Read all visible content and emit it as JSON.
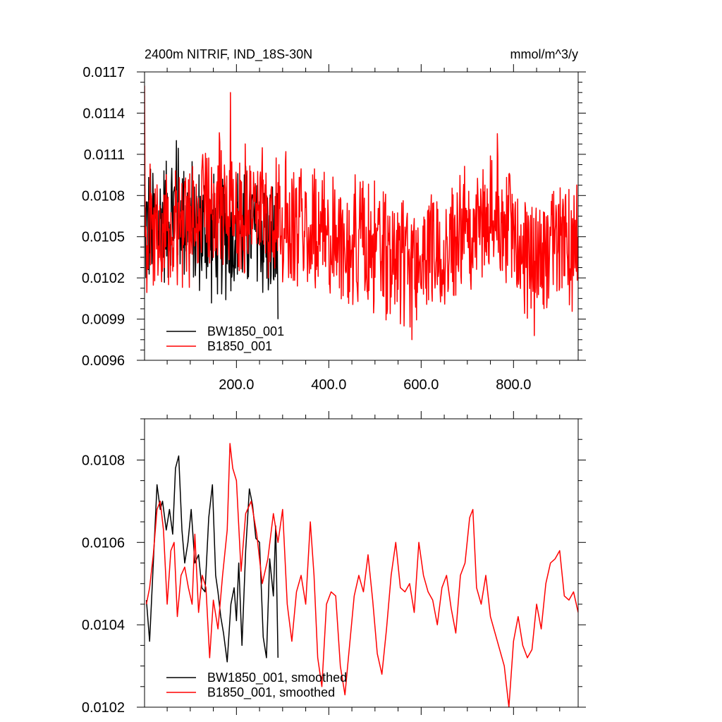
{
  "chart_data": [
    {
      "type": "line",
      "title": "2400m NITRIF, IND_18S-30N",
      "units": "mmol/m^3/y",
      "xlim": [
        1,
        940
      ],
      "ylim": [
        0.0096,
        0.0117
      ],
      "xticks": [
        200,
        400,
        600,
        800
      ],
      "xtick_labels": [
        "200.0",
        "400.0",
        "600.0",
        "800.0"
      ],
      "yticks": [
        0.0096,
        0.0099,
        0.0102,
        0.0105,
        0.0108,
        0.0111,
        0.0114,
        0.0117
      ],
      "ytick_labels": [
        "0.0096",
        "0.0099",
        "0.0102",
        "0.0105",
        "0.0108",
        "0.0111",
        "0.0114",
        "0.0117"
      ],
      "legend_position": "bottom-left",
      "series": [
        {
          "name": "BW1850_001",
          "color": "#000000",
          "x_range": [
            1,
            290
          ],
          "mean": 0.01055,
          "noise_amplitude": 0.00055,
          "anchors": [
            [
              1,
              0.0105
            ],
            [
              40,
              0.01075
            ],
            [
              70,
              0.0112
            ],
            [
              110,
              0.0106
            ],
            [
              150,
              0.0104
            ],
            [
              200,
              0.0105
            ],
            [
              240,
              0.0107
            ],
            [
              270,
              0.0102
            ],
            [
              290,
              0.0099
            ]
          ]
        },
        {
          "name": "B1850_001",
          "color": "#ff0000",
          "x_range": [
            1,
            940
          ],
          "mean": 0.0105,
          "noise_amplitude": 0.00055,
          "anchors": [
            [
              1,
              0.0116
            ],
            [
              5,
              0.0105
            ],
            [
              187,
              0.01155
            ],
            [
              400,
              0.0105
            ],
            [
              580,
              0.00975
            ],
            [
              765,
              0.01125
            ],
            [
              845,
              0.00978
            ],
            [
              940,
              0.0105
            ]
          ]
        }
      ]
    },
    {
      "type": "line",
      "title": "",
      "xlim": [
        1,
        940
      ],
      "ylim": [
        0.0102,
        0.0109
      ],
      "xticks": [
        200,
        400,
        600,
        800
      ],
      "yticks": [
        0.0102,
        0.0104,
        0.0106,
        0.0108
      ],
      "ytick_labels": [
        "0.0102",
        "0.0104",
        "0.0106",
        "0.0108"
      ],
      "legend_position": "bottom-left",
      "series": [
        {
          "name": "BW1850_001, smoothed",
          "color": "#000000",
          "x": [
            5,
            12,
            20,
            28,
            35,
            40,
            48,
            55,
            62,
            68,
            75,
            82,
            88,
            95,
            102,
            110,
            118,
            125,
            132,
            140,
            148,
            155,
            160,
            166,
            172,
            180,
            188,
            195,
            200,
            205,
            212,
            220,
            228,
            235,
            242,
            250,
            258,
            265,
            272,
            280,
            285,
            290
          ],
          "values": [
            0.01046,
            0.01036,
            0.01055,
            0.01074,
            0.01068,
            0.0107,
            0.01063,
            0.01068,
            0.01062,
            0.01078,
            0.01081,
            0.01063,
            0.01055,
            0.0106,
            0.01068,
            0.01055,
            0.01057,
            0.01049,
            0.01048,
            0.01066,
            0.01074,
            0.01052,
            0.01048,
            0.01042,
            0.01038,
            0.01031,
            0.01045,
            0.01049,
            0.01041,
            0.01055,
            0.01035,
            0.01058,
            0.01073,
            0.01069,
            0.01061,
            0.0106,
            0.01037,
            0.01032,
            0.01056,
            0.01047,
            0.01064,
            0.01032
          ]
        },
        {
          "name": "B1850_001, smoothed",
          "color": "#ff0000",
          "x": [
            5,
            12,
            20,
            28,
            35,
            42,
            50,
            58,
            65,
            72,
            80,
            88,
            96,
            104,
            110,
            118,
            126,
            134,
            142,
            150,
            160,
            170,
            180,
            186,
            192,
            200,
            210,
            220,
            232,
            244,
            256,
            268,
            280,
            290,
            300,
            310,
            320,
            330,
            340,
            350,
            360,
            368,
            376,
            385,
            395,
            405,
            415,
            425,
            435,
            445,
            455,
            465,
            475,
            485,
            495,
            505,
            515,
            525,
            535,
            545,
            555,
            565,
            575,
            585,
            595,
            605,
            615,
            625,
            635,
            645,
            655,
            665,
            675,
            685,
            695,
            705,
            712,
            720,
            730,
            740,
            750,
            760,
            770,
            780,
            790,
            800,
            810,
            820,
            830,
            840,
            850,
            860,
            870,
            880,
            890,
            900,
            910,
            920,
            930,
            940
          ],
          "values": [
            0.01045,
            0.01049,
            0.01057,
            0.01068,
            0.0107,
            0.01063,
            0.01045,
            0.01058,
            0.0106,
            0.01042,
            0.01052,
            0.01054,
            0.01049,
            0.01045,
            0.01062,
            0.01043,
            0.01052,
            0.01049,
            0.01032,
            0.01046,
            0.01039,
            0.01052,
            0.01063,
            0.01084,
            0.01078,
            0.01075,
            0.01053,
            0.01067,
            0.0107,
            0.01062,
            0.0105,
            0.01056,
            0.01067,
            0.0106,
            0.01068,
            0.01045,
            0.01036,
            0.01048,
            0.01052,
            0.01045,
            0.01065,
            0.01052,
            0.01032,
            0.01025,
            0.01045,
            0.01048,
            0.01047,
            0.0103,
            0.01023,
            0.01035,
            0.01047,
            0.01052,
            0.01048,
            0.01057,
            0.01046,
            0.01033,
            0.01028,
            0.01039,
            0.01052,
            0.0106,
            0.01049,
            0.01048,
            0.0105,
            0.01043,
            0.0106,
            0.01052,
            0.01048,
            0.01046,
            0.0104,
            0.01049,
            0.01052,
            0.01044,
            0.01038,
            0.01052,
            0.01055,
            0.01066,
            0.01068,
            0.01049,
            0.01045,
            0.01052,
            0.01042,
            0.01038,
            0.01034,
            0.0103,
            0.0102,
            0.01036,
            0.01042,
            0.01035,
            0.01032,
            0.01034,
            0.01045,
            0.01039,
            0.0105,
            0.01055,
            0.01056,
            0.01058,
            0.01047,
            0.01046,
            0.01048,
            0.01043
          ]
        }
      ]
    }
  ]
}
